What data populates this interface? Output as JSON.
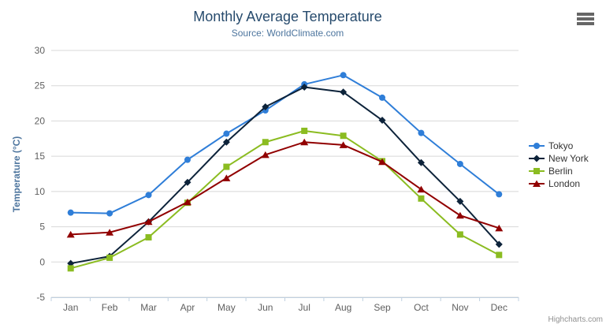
{
  "chart": {
    "title": "Monthly Average Temperature",
    "subtitle": "Source: WorldClimate.com",
    "credits": "Highcharts.com"
  },
  "chart_data": {
    "type": "line",
    "title": "Monthly Average Temperature",
    "subtitle": "Source: WorldClimate.com",
    "xlabel": "",
    "ylabel": "Temperature (°C)",
    "ylim": [
      -5,
      30
    ],
    "y_tick_interval": 5,
    "grid": true,
    "legend_position": "right",
    "categories": [
      "Jan",
      "Feb",
      "Mar",
      "Apr",
      "May",
      "Jun",
      "Jul",
      "Aug",
      "Sep",
      "Oct",
      "Nov",
      "Dec"
    ],
    "series": [
      {
        "name": "Tokyo",
        "color": "#2f7ed8",
        "marker": "circle",
        "values": [
          7.0,
          6.9,
          9.5,
          14.5,
          18.2,
          21.5,
          25.2,
          26.5,
          23.3,
          18.3,
          13.9,
          9.6
        ]
      },
      {
        "name": "New York",
        "color": "#0d233a",
        "marker": "diamond",
        "values": [
          -0.2,
          0.8,
          5.7,
          11.3,
          17.0,
          22.0,
          24.8,
          24.1,
          20.1,
          14.1,
          8.6,
          2.5
        ]
      },
      {
        "name": "Berlin",
        "color": "#8bbc21",
        "marker": "square",
        "values": [
          -0.9,
          0.6,
          3.5,
          8.4,
          13.5,
          17.0,
          18.6,
          17.9,
          14.3,
          9.0,
          3.9,
          1.0
        ]
      },
      {
        "name": "London",
        "color": "#910000",
        "marker": "triangle",
        "values": [
          3.9,
          4.2,
          5.7,
          8.5,
          11.9,
          15.2,
          17.0,
          16.6,
          14.2,
          10.3,
          6.6,
          4.8
        ]
      }
    ]
  },
  "colors": {
    "title": "#274b6d",
    "subtitle": "#4d759e",
    "y_axis_title": "#4d759e",
    "axis_label": "#606060",
    "axis_line": "#c0d0e0",
    "gridline": "#d8d8d8",
    "legend_text": "#333333",
    "credits": "#909090",
    "menu_icon": "#666666",
    "background": "#ffffff"
  }
}
